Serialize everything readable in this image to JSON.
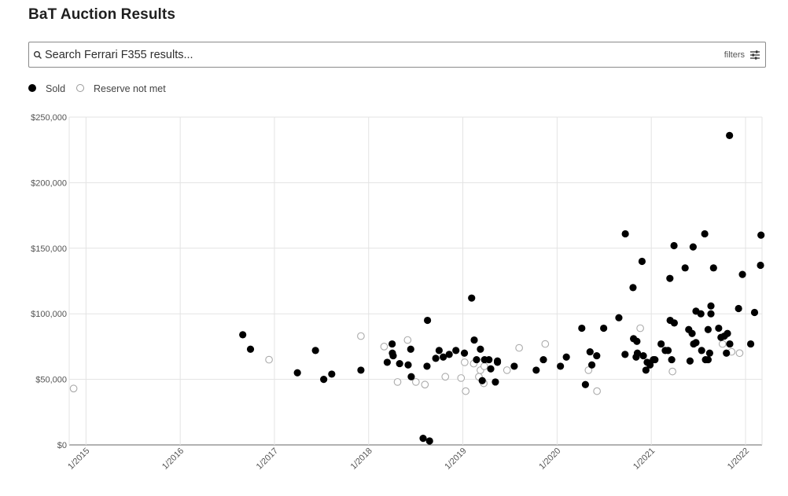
{
  "page": {
    "title": "BaT Auction Results"
  },
  "search": {
    "placeholder": "Search Ferrari F355 results...",
    "filters_label": "filters",
    "search_icon": "search-icon",
    "filters_icon": "sliders-icon"
  },
  "legend": [
    {
      "label": "Sold",
      "style": "filled",
      "color": "#000000"
    },
    {
      "label": "Reserve not met",
      "style": "hollow",
      "color": "#aaaaaa"
    }
  ],
  "chart_data": {
    "type": "scatter",
    "title": "",
    "xlabel": "",
    "ylabel": "",
    "x_axis": {
      "type": "date",
      "range": [
        "2014-10-28",
        "2022-03-06"
      ],
      "tick_labels": [
        "1/2015",
        "1/2016",
        "1/2017",
        "1/2018",
        "1/2019",
        "1/2020",
        "1/2021",
        "1/2022"
      ],
      "tick_values": [
        2015,
        2016,
        2017,
        2018,
        2019,
        2020,
        2021,
        2022
      ]
    },
    "y_axis": {
      "range": [
        0,
        250000
      ],
      "tick_values": [
        0,
        50000,
        100000,
        150000,
        200000,
        250000
      ],
      "tick_labels": [
        "$0",
        "$50,000",
        "$100,000",
        "$150,000",
        "$200,000",
        "$250,000"
      ]
    },
    "grid": true,
    "legend_position": "top-left",
    "series": [
      {
        "name": "Sold",
        "color": "#000000",
        "points": [
          {
            "x": "2016-08-31",
            "y": 84000
          },
          {
            "x": "2016-09-30",
            "y": 73000
          },
          {
            "x": "2017-03-31",
            "y": 55000
          },
          {
            "x": "2017-06-09",
            "y": 72000
          },
          {
            "x": "2017-07-11",
            "y": 50000
          },
          {
            "x": "2017-08-11",
            "y": 54000
          },
          {
            "x": "2017-12-02",
            "y": 57000
          },
          {
            "x": "2018-03-14",
            "y": 63000
          },
          {
            "x": "2018-04-02",
            "y": 77000
          },
          {
            "x": "2018-04-03",
            "y": 70000
          },
          {
            "x": "2018-04-06",
            "y": 68000
          },
          {
            "x": "2018-05-01",
            "y": 62000
          },
          {
            "x": "2018-06-03",
            "y": 61000
          },
          {
            "x": "2018-06-13",
            "y": 73000
          },
          {
            "x": "2018-06-15",
            "y": 52000
          },
          {
            "x": "2018-07-31",
            "y": 5000
          },
          {
            "x": "2018-08-15",
            "y": 60000
          },
          {
            "x": "2018-08-25",
            "y": 3000
          },
          {
            "x": "2018-08-17",
            "y": 95000
          },
          {
            "x": "2018-09-18",
            "y": 66000
          },
          {
            "x": "2018-10-01",
            "y": 72000
          },
          {
            "x": "2018-10-17",
            "y": 67000
          },
          {
            "x": "2018-11-09",
            "y": 69000
          },
          {
            "x": "2018-12-05",
            "y": 72000
          },
          {
            "x": "2019-01-07",
            "y": 70000
          },
          {
            "x": "2019-02-04",
            "y": 112000
          },
          {
            "x": "2019-02-14",
            "y": 80000
          },
          {
            "x": "2019-02-23",
            "y": 65000
          },
          {
            "x": "2019-03-10",
            "y": 73000
          },
          {
            "x": "2019-03-17",
            "y": 49000
          },
          {
            "x": "2019-03-26",
            "y": 65000
          },
          {
            "x": "2019-04-12",
            "y": 65000
          },
          {
            "x": "2019-04-19",
            "y": 58000
          },
          {
            "x": "2019-05-07",
            "y": 48000
          },
          {
            "x": "2019-05-15",
            "y": 63000
          },
          {
            "x": "2019-05-15",
            "y": 64000
          },
          {
            "x": "2019-07-19",
            "y": 60000
          },
          {
            "x": "2019-10-12",
            "y": 57000
          },
          {
            "x": "2019-11-09",
            "y": 65000
          },
          {
            "x": "2020-01-14",
            "y": 60000
          },
          {
            "x": "2020-02-06",
            "y": 67000
          },
          {
            "x": "2020-04-06",
            "y": 89000
          },
          {
            "x": "2020-04-20",
            "y": 46000
          },
          {
            "x": "2020-05-08",
            "y": 71000
          },
          {
            "x": "2020-05-15",
            "y": 61000
          },
          {
            "x": "2020-06-03",
            "y": 68000
          },
          {
            "x": "2020-06-30",
            "y": 89000
          },
          {
            "x": "2020-08-28",
            "y": 97000
          },
          {
            "x": "2020-09-21",
            "y": 69000
          },
          {
            "x": "2020-09-22",
            "y": 161000
          },
          {
            "x": "2020-10-22",
            "y": 120000
          },
          {
            "x": "2020-10-24",
            "y": 81000
          },
          {
            "x": "2020-11-03",
            "y": 67000
          },
          {
            "x": "2020-11-06",
            "y": 79000
          },
          {
            "x": "2020-11-08",
            "y": 70000
          },
          {
            "x": "2020-11-26",
            "y": 140000
          },
          {
            "x": "2020-12-01",
            "y": 68000
          },
          {
            "x": "2020-12-11",
            "y": 57000
          },
          {
            "x": "2020-12-16",
            "y": 63000
          },
          {
            "x": "2020-12-27",
            "y": 61000
          },
          {
            "x": "2021-01-09",
            "y": 65000
          },
          {
            "x": "2021-01-15",
            "y": 65000
          },
          {
            "x": "2021-02-08",
            "y": 77000
          },
          {
            "x": "2021-02-24",
            "y": 72000
          },
          {
            "x": "2021-03-07",
            "y": 72000
          },
          {
            "x": "2021-03-14",
            "y": 127000
          },
          {
            "x": "2021-03-15",
            "y": 95000
          },
          {
            "x": "2021-03-21",
            "y": 65000
          },
          {
            "x": "2021-03-30",
            "y": 152000
          },
          {
            "x": "2021-03-31",
            "y": 93000
          },
          {
            "x": "2021-05-12",
            "y": 135000
          },
          {
            "x": "2021-05-26",
            "y": 88000
          },
          {
            "x": "2021-05-31",
            "y": 64000
          },
          {
            "x": "2021-06-08",
            "y": 85000
          },
          {
            "x": "2021-06-12",
            "y": 151000
          },
          {
            "x": "2021-06-14",
            "y": 77000
          },
          {
            "x": "2021-06-23",
            "y": 78000
          },
          {
            "x": "2021-06-23",
            "y": 102000
          },
          {
            "x": "2021-07-12",
            "y": 100000
          },
          {
            "x": "2021-07-15",
            "y": 72000
          },
          {
            "x": "2021-07-27",
            "y": 161000
          },
          {
            "x": "2021-07-30",
            "y": 65000
          },
          {
            "x": "2021-08-09",
            "y": 88000
          },
          {
            "x": "2021-08-09",
            "y": 65000
          },
          {
            "x": "2021-08-15",
            "y": 70000
          },
          {
            "x": "2021-08-20",
            "y": 100000
          },
          {
            "x": "2021-08-20",
            "y": 106000
          },
          {
            "x": "2021-08-30",
            "y": 135000
          },
          {
            "x": "2021-09-19",
            "y": 89000
          },
          {
            "x": "2021-09-28",
            "y": 82000
          },
          {
            "x": "2021-10-11",
            "y": 83000
          },
          {
            "x": "2021-10-19",
            "y": 70000
          },
          {
            "x": "2021-10-23",
            "y": 85000
          },
          {
            "x": "2021-10-31",
            "y": 236000
          },
          {
            "x": "2021-11-01",
            "y": 77000
          },
          {
            "x": "2021-12-05",
            "y": 104000
          },
          {
            "x": "2021-12-20",
            "y": 130000
          },
          {
            "x": "2022-01-21",
            "y": 77000
          },
          {
            "x": "2022-02-05",
            "y": 101000
          },
          {
            "x": "2022-02-28",
            "y": 137000
          },
          {
            "x": "2022-03-02",
            "y": 160000
          }
        ]
      },
      {
        "name": "Reserve not met",
        "color": "#aaaaaa",
        "points": [
          {
            "x": "2014-11-14",
            "y": 43000
          },
          {
            "x": "2016-12-11",
            "y": 65000
          },
          {
            "x": "2017-12-02",
            "y": 83000
          },
          {
            "x": "2018-03-02",
            "y": 75000
          },
          {
            "x": "2018-04-23",
            "y": 48000
          },
          {
            "x": "2018-06-01",
            "y": 80000
          },
          {
            "x": "2018-07-03",
            "y": 48000
          },
          {
            "x": "2018-08-07",
            "y": 46000
          },
          {
            "x": "2018-10-25",
            "y": 52000
          },
          {
            "x": "2018-12-25",
            "y": 51000
          },
          {
            "x": "2019-01-08",
            "y": 63000
          },
          {
            "x": "2019-01-12",
            "y": 41000
          },
          {
            "x": "2019-02-12",
            "y": 62000
          },
          {
            "x": "2019-03-04",
            "y": 52000
          },
          {
            "x": "2019-03-10",
            "y": 57000
          },
          {
            "x": "2019-03-23",
            "y": 47000
          },
          {
            "x": "2019-03-25",
            "y": 60000
          },
          {
            "x": "2019-06-21",
            "y": 57000
          },
          {
            "x": "2019-08-07",
            "y": 74000
          },
          {
            "x": "2019-11-16",
            "y": 77000
          },
          {
            "x": "2020-05-02",
            "y": 57000
          },
          {
            "x": "2020-06-04",
            "y": 41000
          },
          {
            "x": "2020-11-19",
            "y": 89000
          },
          {
            "x": "2021-03-24",
            "y": 56000
          },
          {
            "x": "2021-10-04",
            "y": 77000
          },
          {
            "x": "2021-11-08",
            "y": 71000
          },
          {
            "x": "2021-12-09",
            "y": 70000
          }
        ]
      }
    ]
  }
}
